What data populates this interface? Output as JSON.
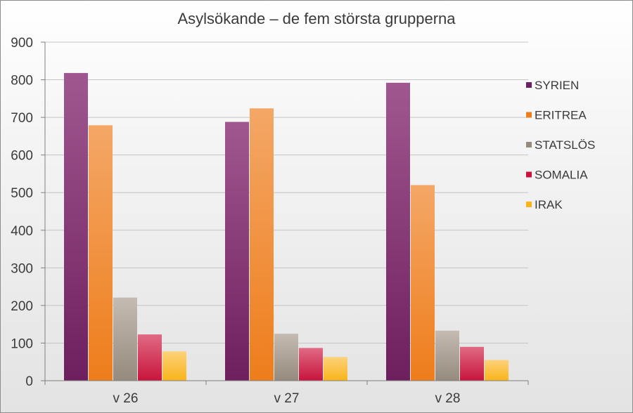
{
  "chart_data": {
    "type": "bar",
    "title": "Asylsökande – de fem största grupperna",
    "xlabel": "",
    "ylabel": "",
    "categories": [
      "v 26",
      "v 27",
      "v 28"
    ],
    "ylim": [
      0,
      900
    ],
    "yticks": [
      0,
      100,
      200,
      300,
      400,
      500,
      600,
      700,
      800,
      900
    ],
    "grid": true,
    "legend_position": "right",
    "series": [
      {
        "name": "SYRIEN",
        "values": [
          818,
          688,
          792
        ],
        "color": "#6e1f5e",
        "color_light": "#a0578f"
      },
      {
        "name": "ERITREA",
        "values": [
          679,
          724,
          520
        ],
        "color": "#ee7d1b",
        "color_light": "#f4a766"
      },
      {
        "name": "STATSLÖS",
        "values": [
          221,
          125,
          133
        ],
        "color": "#958a7d",
        "color_light": "#c4bbb2"
      },
      {
        "name": "SOMALIA",
        "values": [
          123,
          87,
          90
        ],
        "color": "#c8143c",
        "color_light": "#e06a84"
      },
      {
        "name": "IRAK",
        "values": [
          78,
          63,
          55
        ],
        "color": "#f9b41a",
        "color_light": "#fdd27a"
      }
    ]
  }
}
